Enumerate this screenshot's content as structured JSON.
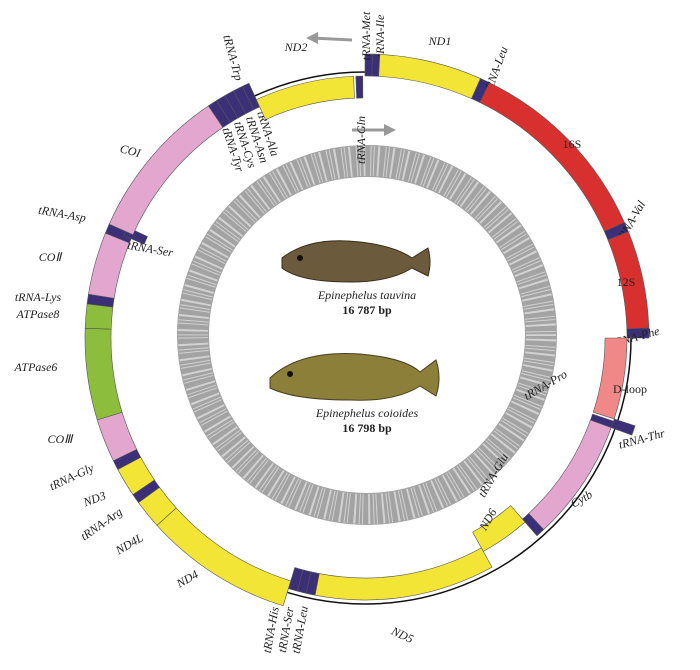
{
  "features": [
    {
      "name": "tRNA-Met"
    },
    {
      "name": "tRNA-Ile"
    },
    {
      "name": "ND1"
    },
    {
      "name": "tRNA-Leu"
    },
    {
      "name": "16S"
    },
    {
      "name": "tRNA-Val"
    },
    {
      "name": "12S"
    },
    {
      "name": "tRNA-Phe"
    },
    {
      "name": "D-loop"
    },
    {
      "name": "tRNA-Thr"
    },
    {
      "name": "tRNA-Pro"
    },
    {
      "name": "Cytb"
    },
    {
      "name": "tRNA-Glu"
    },
    {
      "name": "ND6"
    },
    {
      "name": "ND5"
    },
    {
      "name": "tRNA-His"
    },
    {
      "name": "tRNA-Ser"
    },
    {
      "name": "tRNA-Leu"
    },
    {
      "name": "ND4"
    },
    {
      "name": "ND4L"
    },
    {
      "name": "tRNA-Arg"
    },
    {
      "name": "ND3"
    },
    {
      "name": "tRNA-Gly"
    },
    {
      "name": "COⅢ"
    },
    {
      "name": "ATPase6"
    },
    {
      "name": "ATPase8"
    },
    {
      "name": "tRNA-Lys"
    },
    {
      "name": "COⅡ"
    },
    {
      "name": "tRNA-Asp"
    },
    {
      "name": "tRNA-Ser"
    },
    {
      "name": "COI"
    },
    {
      "name": "tRNA-Tyr"
    },
    {
      "name": "tRNA-Cys"
    },
    {
      "name": "tRNA-Asn"
    },
    {
      "name": "tRNA-Ala"
    },
    {
      "name": "tRNA-Trp"
    },
    {
      "name": "ND2"
    },
    {
      "name": "tRNA-Gln"
    }
  ],
  "species": [
    {
      "name": "Epinephelus tauvina",
      "size": "16 787 bp"
    },
    {
      "name": "Epinephelus coioides",
      "size": "16 798 bp"
    }
  ]
}
